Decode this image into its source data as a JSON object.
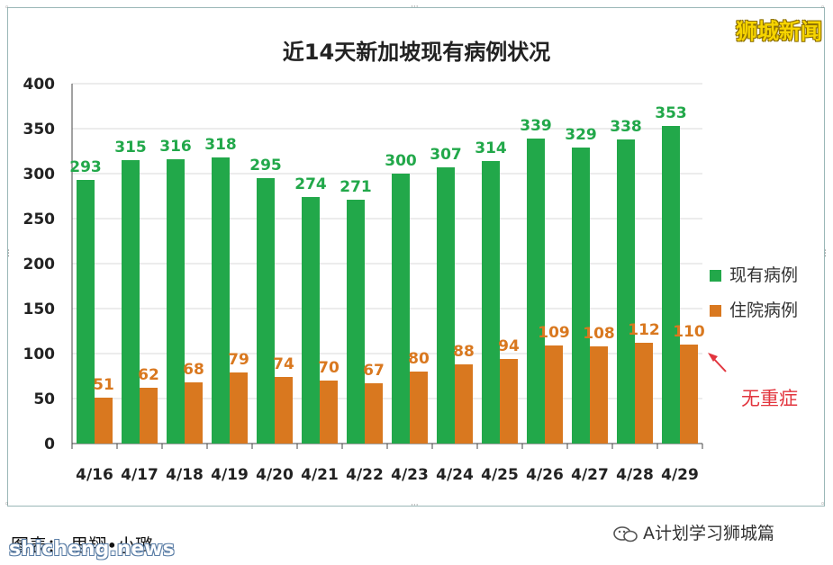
{
  "brand": "狮城新闻",
  "annotation": "无重症",
  "credit": "图表： 思翔•小璐",
  "watermark": "shicheng.news",
  "wechat_account": "A计划学习狮城篇",
  "colors": {
    "series1": "#22a84a",
    "series2": "#d9781f",
    "annotation": "#e2353e",
    "brand": "#f6d400"
  },
  "chart_data": {
    "type": "bar",
    "title": "近14天新加坡现有病例状况",
    "categories": [
      "4/16",
      "4/17",
      "4/18",
      "4/19",
      "4/20",
      "4/21",
      "4/22",
      "4/23",
      "4/24",
      "4/25",
      "4/26",
      "4/27",
      "4/28",
      "4/29"
    ],
    "series": [
      {
        "name": "现有病例",
        "color": "#22a84a",
        "values": [
          293,
          315,
          316,
          318,
          295,
          274,
          271,
          300,
          307,
          314,
          339,
          329,
          338,
          353
        ]
      },
      {
        "name": "住院病例",
        "color": "#d9781f",
        "values": [
          51,
          62,
          68,
          79,
          74,
          70,
          67,
          80,
          88,
          94,
          109,
          108,
          112,
          110
        ]
      }
    ],
    "ylim": [
      0,
      400
    ],
    "yticks": [
      0,
      50,
      100,
      150,
      200,
      250,
      300,
      350,
      400
    ],
    "grid": true,
    "legend": "right"
  }
}
